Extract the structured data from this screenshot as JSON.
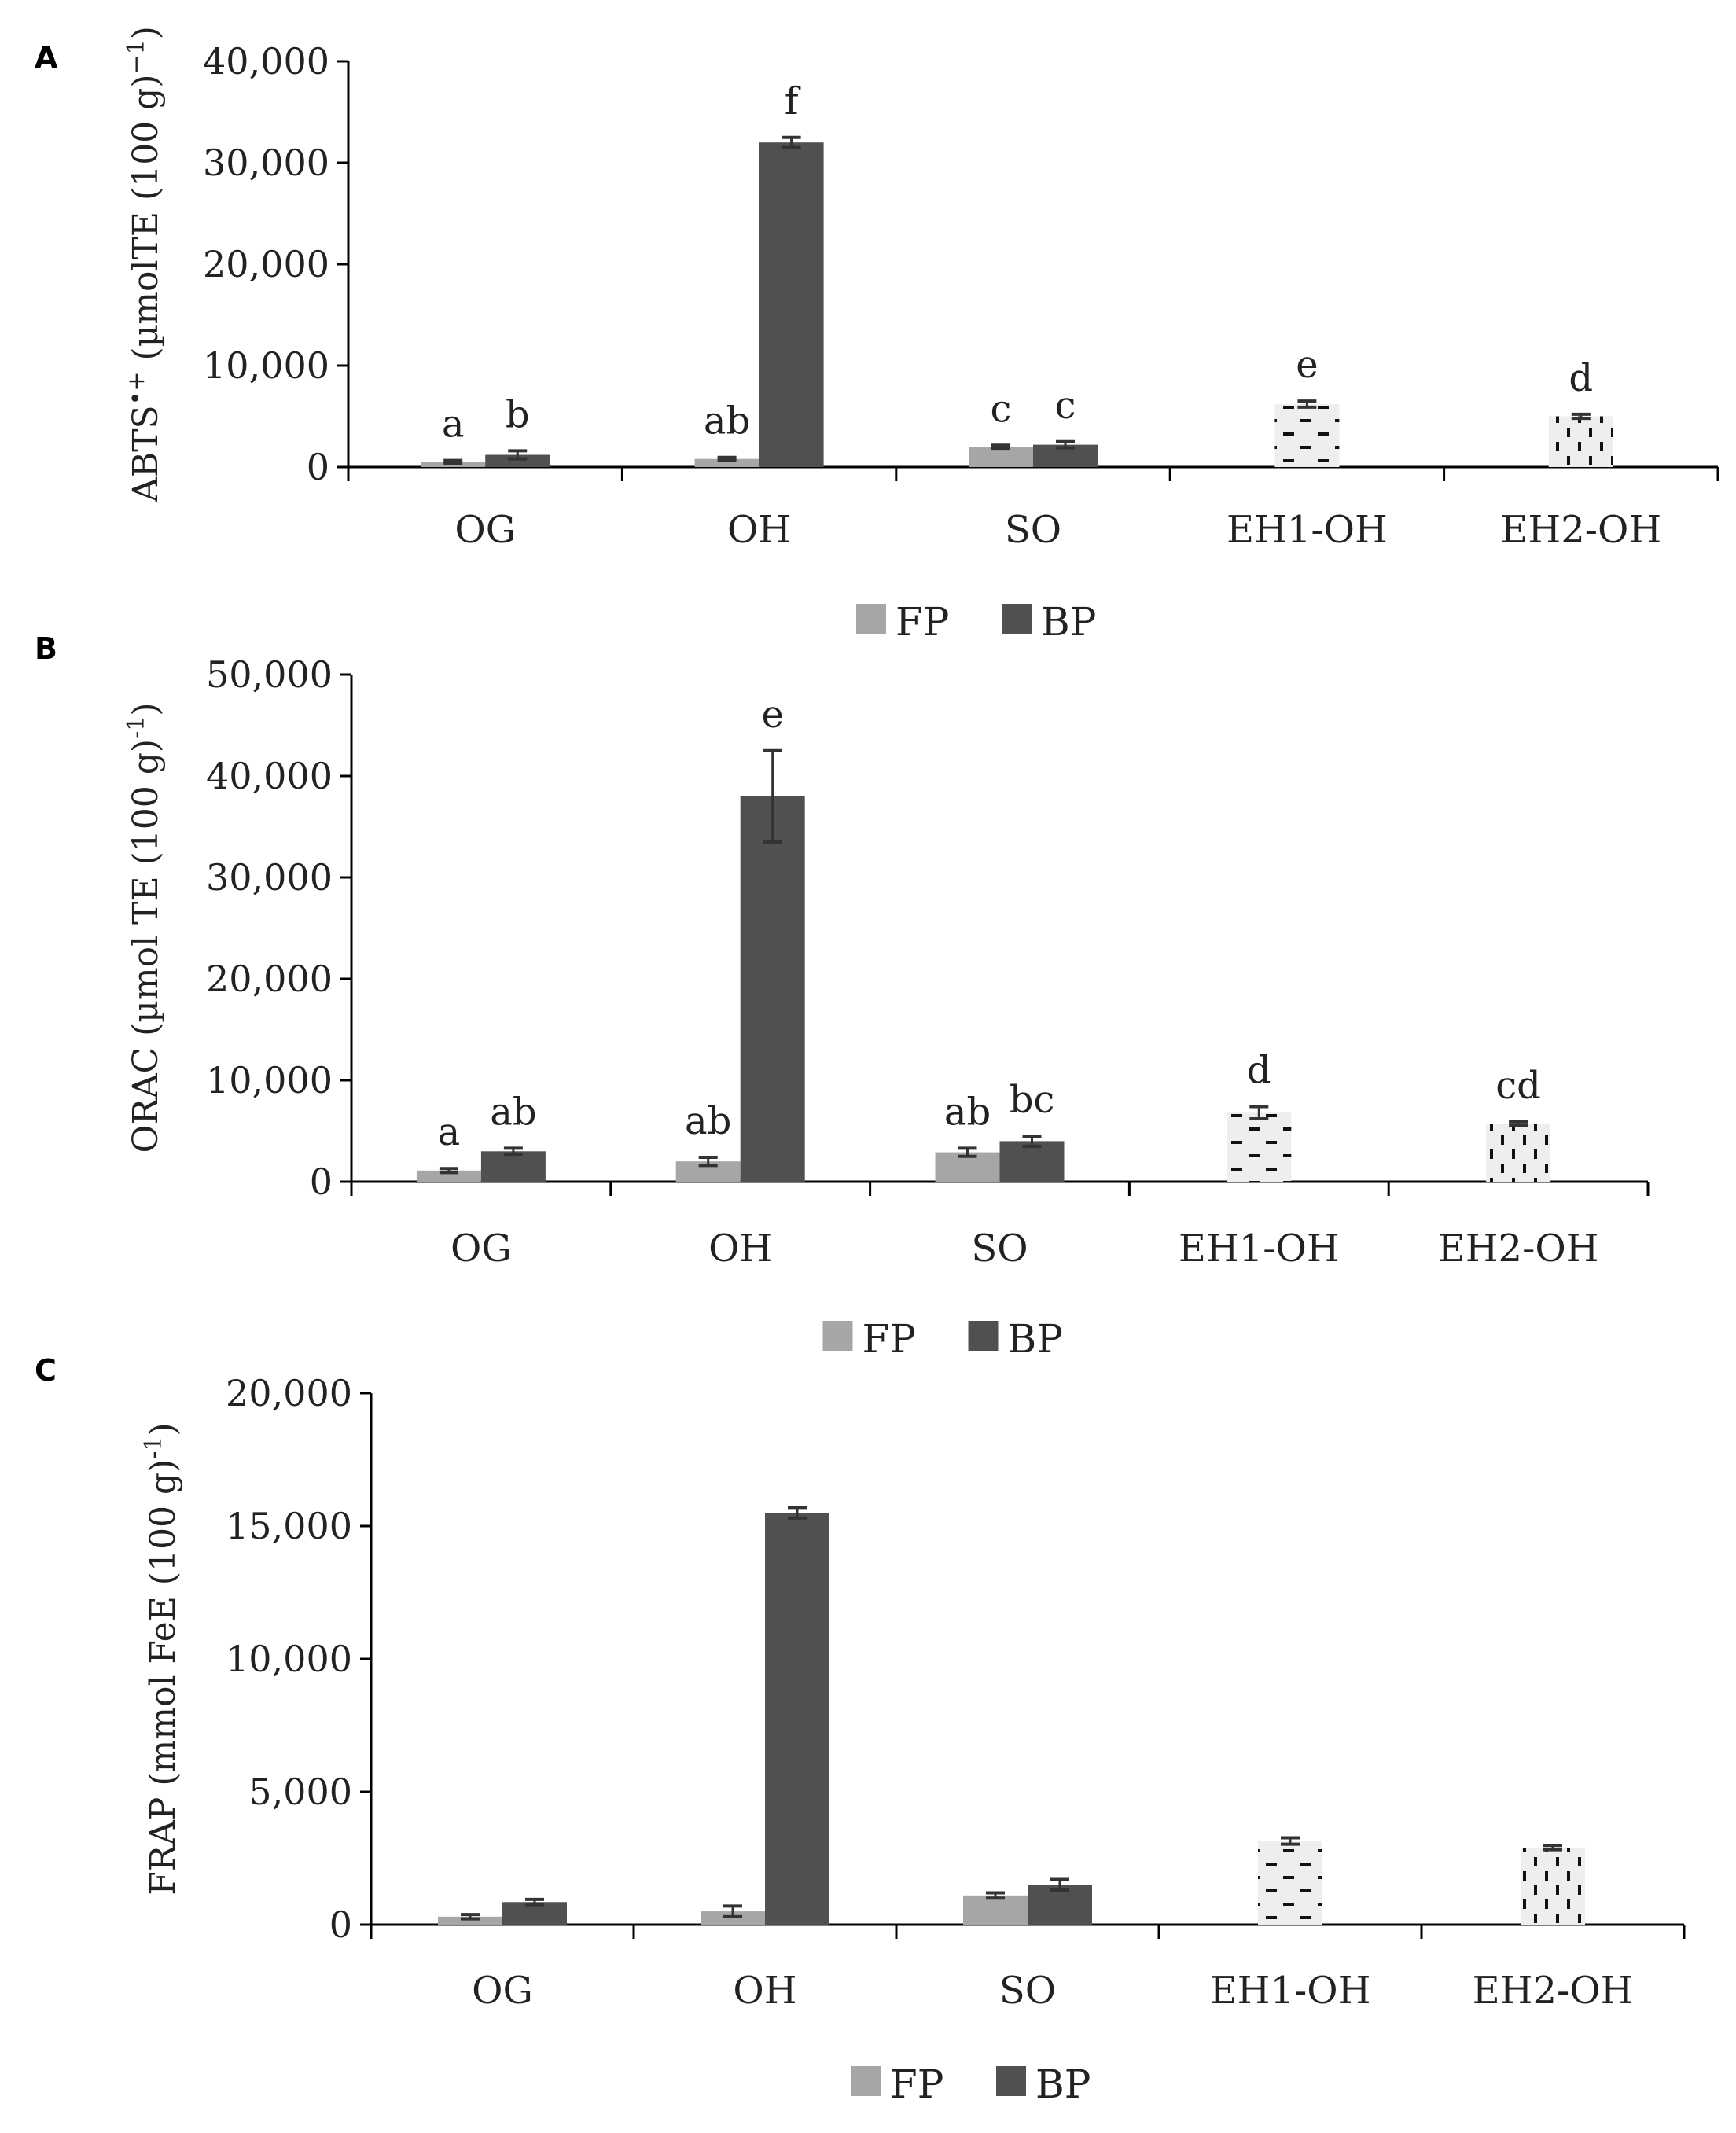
{
  "figure": {
    "colors": {
      "FP": "#a6a6a6",
      "BP": "#505050",
      "axis": "#000000",
      "pattern_fill": "#eeeeee",
      "pattern_mark": "#111111"
    },
    "legend": [
      "FP",
      "BP"
    ]
  },
  "chart_data": [
    {
      "panel": "A",
      "type": "bar",
      "ylabel_main": "ABTS",
      "ylabel_super1": "•+",
      "ylabel_mid": " (µmolTE (100 g)",
      "ylabel_super2": "−1",
      "ylabel_end": ")",
      "ylim": [
        0,
        40000
      ],
      "yticks": [
        0,
        10000,
        20000,
        30000,
        40000
      ],
      "ytick_labels": [
        "0",
        "10,000",
        "20,000",
        "30,000",
        "40,000"
      ],
      "categories": [
        "OG",
        "OH",
        "SO",
        "EH1-OH",
        "EH2-OH"
      ],
      "series": [
        {
          "name": "FP",
          "values": [
            500,
            800,
            2000,
            null,
            null
          ],
          "errors": [
            150,
            150,
            150,
            null,
            null
          ],
          "letters": [
            "a",
            "ab",
            "c",
            null,
            null
          ]
        },
        {
          "name": "BP",
          "values": [
            1200,
            32000,
            2200,
            null,
            null
          ],
          "errors": [
            400,
            500,
            300,
            null,
            null
          ],
          "letters": [
            "b",
            "f",
            "c",
            null,
            null
          ]
        }
      ],
      "single": {
        "values": [
          null,
          null,
          null,
          6200,
          5000
        ],
        "errors": [
          null,
          null,
          null,
          300,
          200
        ],
        "letters": [
          null,
          null,
          null,
          "e",
          "d"
        ],
        "patterns": [
          null,
          null,
          null,
          "dash",
          "vdash"
        ]
      }
    },
    {
      "panel": "B",
      "type": "bar",
      "ylabel_main": "ORAC (µmol TE (100 g)",
      "ylabel_super2": "-1",
      "ylabel_end": ")",
      "ylim": [
        0,
        50000
      ],
      "yticks": [
        0,
        10000,
        20000,
        30000,
        40000,
        50000
      ],
      "ytick_labels": [
        "0",
        "10,000",
        "20,000",
        "30,000",
        "40,000",
        "50,000"
      ],
      "categories": [
        "OG",
        "OH",
        "SO",
        "EH1-OH",
        "EH2-OH"
      ],
      "series": [
        {
          "name": "FP",
          "values": [
            1100,
            2000,
            2900,
            null,
            null
          ],
          "errors": [
            200,
            400,
            400,
            null,
            null
          ],
          "letters": [
            "a",
            "ab",
            "ab",
            null,
            null
          ]
        },
        {
          "name": "BP",
          "values": [
            3000,
            38000,
            4000,
            null,
            null
          ],
          "errors": [
            300,
            4500,
            500,
            null,
            null
          ],
          "letters": [
            "ab",
            "e",
            "bc",
            null,
            null
          ]
        }
      ],
      "single": {
        "values": [
          null,
          null,
          null,
          6800,
          5700
        ],
        "errors": [
          null,
          null,
          null,
          600,
          200
        ],
        "letters": [
          null,
          null,
          null,
          "d",
          "cd"
        ],
        "patterns": [
          null,
          null,
          null,
          "dash",
          "vdash"
        ]
      }
    },
    {
      "panel": "C",
      "type": "bar",
      "ylabel_main": "FRAP (mmol FeE (100 g)",
      "ylabel_super2": "-1",
      "ylabel_end": ")",
      "ylim": [
        0,
        20000
      ],
      "yticks": [
        0,
        5000,
        10000,
        15000,
        20000
      ],
      "ytick_labels": [
        "0",
        "5,000",
        "10,000",
        "15,000",
        "20,000"
      ],
      "categories": [
        "OG",
        "OH",
        "SO",
        "EH1-OH",
        "EH2-OH"
      ],
      "series": [
        {
          "name": "FP",
          "values": [
            300,
            500,
            1100,
            null,
            null
          ],
          "errors": [
            80,
            200,
            100,
            null,
            null
          ],
          "letters": [
            null,
            null,
            null,
            null,
            null
          ]
        },
        {
          "name": "BP",
          "values": [
            850,
            15500,
            1500,
            null,
            null
          ],
          "errors": [
            100,
            200,
            200,
            null,
            null
          ],
          "letters": [
            null,
            null,
            null,
            null,
            null
          ]
        }
      ],
      "single": {
        "values": [
          null,
          null,
          null,
          3150,
          2900
        ],
        "errors": [
          null,
          null,
          null,
          120,
          80
        ],
        "letters": [
          null,
          null,
          null,
          null,
          null
        ],
        "patterns": [
          null,
          null,
          null,
          "dash",
          "vdash"
        ]
      }
    }
  ]
}
